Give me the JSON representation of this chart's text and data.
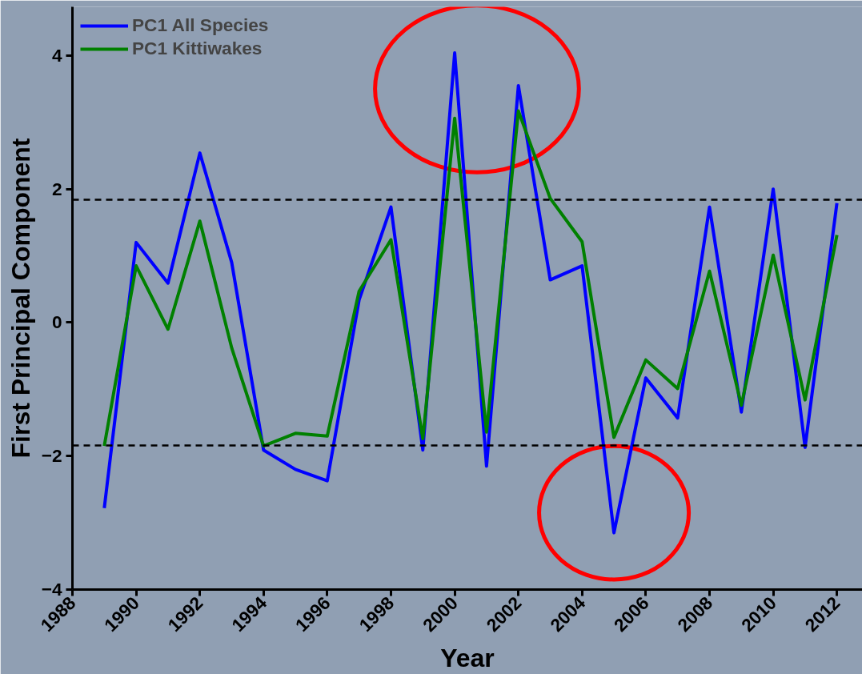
{
  "chart_data": {
    "type": "line",
    "xlabel": "Year",
    "ylabel": "First Principal Component",
    "x": [
      1989,
      1990,
      1991,
      1992,
      1993,
      1994,
      1995,
      1996,
      1997,
      1998,
      1999,
      2000,
      2001,
      2002,
      2003,
      2004,
      2005,
      2006,
      2007,
      2008,
      2009,
      2010,
      2011,
      2012
    ],
    "series": [
      {
        "name": "PC1 All Species",
        "color": "#0000ff",
        "values": [
          -2.78,
          1.2,
          0.59,
          2.54,
          0.9,
          -1.91,
          -2.2,
          -2.37,
          0.34,
          1.73,
          -1.91,
          4.04,
          -2.15,
          3.55,
          0.64,
          0.85,
          -3.15,
          -0.83,
          -1.43,
          1.73,
          -1.34,
          2.0,
          -1.87,
          1.79
        ]
      },
      {
        "name": "PC1 Kittiwakes",
        "color": "#008000",
        "values": [
          -1.85,
          0.85,
          -0.1,
          1.52,
          -0.38,
          -1.85,
          -1.66,
          -1.7,
          0.47,
          1.24,
          -1.74,
          3.06,
          -1.64,
          3.17,
          1.86,
          1.21,
          -1.72,
          -0.56,
          -0.99,
          0.77,
          -1.24,
          1.01,
          -1.16,
          1.31
        ]
      }
    ],
    "xlim": [
      1988,
      2012.8
    ],
    "xticks": [
      1988,
      1990,
      1992,
      1994,
      1996,
      1998,
      2000,
      2002,
      2004,
      2006,
      2008,
      2010,
      2012
    ],
    "ylim": [
      -4,
      4.73
    ],
    "yticks": [
      -4,
      -2,
      0,
      2,
      4
    ],
    "ref_lines": [
      {
        "axis": "y",
        "value": 1.84,
        "color": "#000000",
        "line_style": "dashed"
      },
      {
        "axis": "y",
        "value": -1.84,
        "color": "#000000",
        "line_style": "dashed"
      }
    ],
    "grid": false,
    "legend": "top left",
    "marker": "none",
    "line_style": "solid"
  }
}
